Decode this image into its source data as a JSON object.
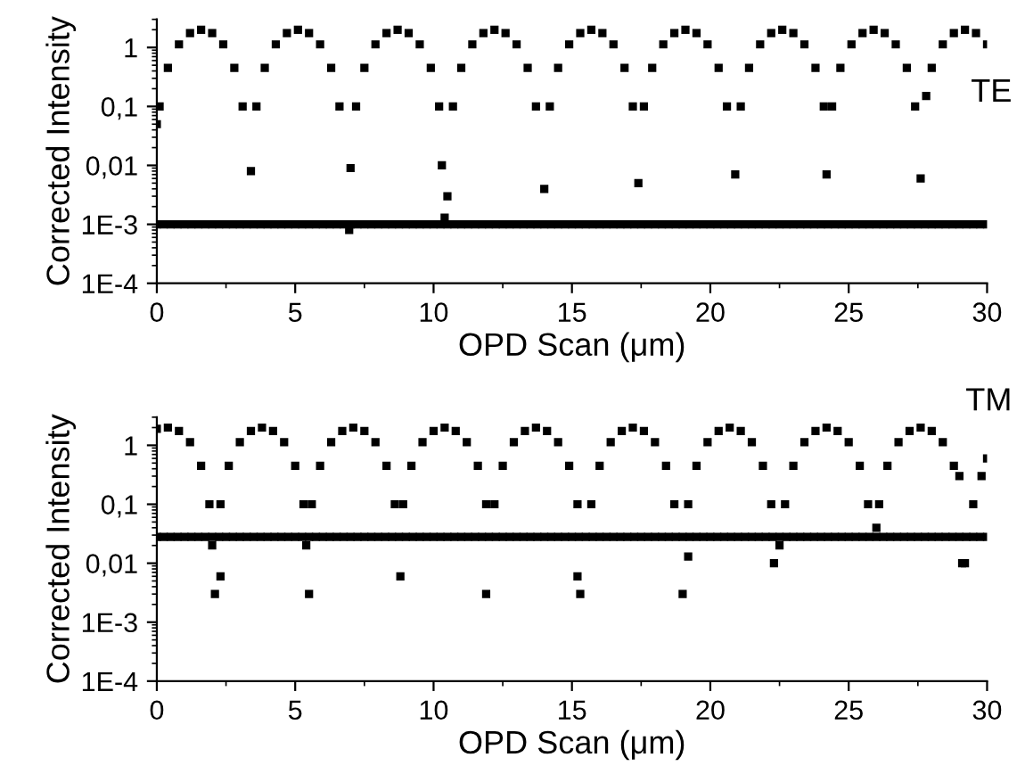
{
  "chart_data": [
    {
      "type": "scatter",
      "xlabel": "OPD Scan (μm)",
      "ylabel": "Corrected Intensity",
      "annotations": [
        "TE"
      ],
      "log": "y",
      "marker": "square",
      "grid": false,
      "legend": false,
      "xlim": [
        0,
        30
      ],
      "xticks": [
        0,
        5,
        10,
        15,
        20,
        25,
        30
      ],
      "ylim": [
        0.0001,
        3
      ],
      "yticks": [
        {
          "value": 0.0001,
          "label": "1E-4"
        },
        {
          "value": 0.001,
          "label": "1E-3"
        },
        {
          "value": 0.01,
          "label": "0,01"
        },
        {
          "value": 0.1,
          "label": "0,1"
        },
        {
          "value": 1,
          "label": "1"
        }
      ],
      "series": [
        {
          "color": "#000000",
          "x": [
            0,
            0.1,
            0.4,
            0.8,
            1.2,
            1.6,
            2.0,
            2.4,
            2.8,
            3.1,
            3.4,
            3.6,
            3.9,
            4.3,
            4.7,
            5.1,
            5.5,
            5.9,
            6.3,
            6.6,
            7.0,
            6.95,
            7.2,
            7.5,
            7.9,
            8.3,
            8.7,
            9.1,
            9.5,
            9.9,
            10.2,
            10.3,
            10.4,
            10.5,
            10.7,
            11.0,
            11.4,
            11.8,
            12.2,
            12.6,
            13.0,
            13.4,
            13.7,
            14.0,
            14.2,
            14.5,
            14.9,
            15.3,
            15.7,
            16.1,
            16.5,
            16.9,
            17.2,
            17.4,
            17.6,
            17.9,
            18.3,
            18.7,
            19.1,
            19.5,
            19.9,
            20.3,
            20.6,
            20.9,
            21.1,
            21.4,
            21.8,
            22.2,
            22.6,
            23.0,
            23.4,
            23.8,
            24.1,
            24.2,
            24.4,
            24.7,
            25.1,
            25.5,
            25.9,
            26.3,
            26.7,
            27.1,
            27.4,
            27.6,
            27.8,
            28.0,
            28.4,
            28.8,
            29.2,
            29.6,
            30.0
          ],
          "values": [
            0.05,
            0.1,
            0.45,
            1.13,
            1.75,
            2,
            1.75,
            1.13,
            0.45,
            0.1,
            0.008,
            0.1,
            0.45,
            1.13,
            1.75,
            2,
            1.75,
            1.13,
            0.45,
            0.1,
            0.009,
            0.0008,
            0.1,
            0.45,
            1.13,
            1.75,
            2,
            1.75,
            1.13,
            0.45,
            0.1,
            0.01,
            0.0013,
            0.003,
            0.1,
            0.45,
            1.13,
            1.75,
            2,
            1.75,
            1.13,
            0.45,
            0.1,
            0.004,
            0.1,
            0.45,
            1.13,
            1.75,
            2,
            1.75,
            1.13,
            0.45,
            0.1,
            0.005,
            0.1,
            0.45,
            1.13,
            1.75,
            2,
            1.75,
            1.13,
            0.45,
            0.1,
            0.007,
            0.1,
            0.45,
            1.13,
            1.75,
            2,
            1.75,
            1.13,
            0.45,
            0.1,
            0.007,
            0.1,
            0.45,
            1.13,
            1.75,
            2,
            1.75,
            1.13,
            0.45,
            0.1,
            0.006,
            0.15,
            0.45,
            1.13,
            1.75,
            2,
            1.75,
            1.13
          ]
        },
        {
          "color": "#000000",
          "x": [
            0,
            0.25,
            0.5,
            0.75,
            1,
            1.25,
            1.5,
            1.75,
            2,
            2.25,
            2.5,
            2.75,
            3,
            3.25,
            3.5,
            3.75,
            4,
            4.25,
            4.5,
            4.75,
            5,
            5.25,
            5.5,
            5.75,
            6,
            6.25,
            6.5,
            6.75,
            7,
            7.25,
            7.5,
            7.75,
            8,
            8.25,
            8.5,
            8.75,
            9,
            9.25,
            9.5,
            9.75,
            10,
            10.25,
            10.5,
            10.75,
            11,
            11.25,
            11.5,
            11.75,
            12,
            12.25,
            12.5,
            12.75,
            13,
            13.25,
            13.5,
            13.75,
            14,
            14.25,
            14.5,
            14.75,
            15,
            15.25,
            15.5,
            15.75,
            16,
            16.25,
            16.5,
            16.75,
            17,
            17.25,
            17.5,
            17.75,
            18,
            18.25,
            18.5,
            18.75,
            19,
            19.25,
            19.5,
            19.75,
            20,
            20.25,
            20.5,
            20.75,
            21,
            21.25,
            21.5,
            21.75,
            22,
            22.25,
            22.5,
            22.75,
            23,
            23.25,
            23.5,
            23.75,
            24,
            24.25,
            24.5,
            24.75,
            25,
            25.25,
            25.5,
            25.75,
            26,
            26.25,
            26.5,
            26.75,
            27,
            27.25,
            27.5,
            27.75,
            28,
            28.25,
            28.5,
            28.75,
            29,
            29.25,
            29.5,
            29.75,
            30
          ],
          "values": [
            0.001,
            0.001,
            0.001,
            0.001,
            0.001,
            0.001,
            0.001,
            0.001,
            0.001,
            0.001,
            0.001,
            0.001,
            0.001,
            0.001,
            0.001,
            0.001,
            0.001,
            0.001,
            0.001,
            0.001,
            0.001,
            0.001,
            0.001,
            0.001,
            0.001,
            0.001,
            0.001,
            0.001,
            0.001,
            0.001,
            0.001,
            0.001,
            0.001,
            0.001,
            0.001,
            0.001,
            0.001,
            0.001,
            0.001,
            0.001,
            0.001,
            0.001,
            0.001,
            0.001,
            0.001,
            0.001,
            0.001,
            0.001,
            0.001,
            0.001,
            0.001,
            0.001,
            0.001,
            0.001,
            0.001,
            0.001,
            0.001,
            0.001,
            0.001,
            0.001,
            0.001,
            0.001,
            0.001,
            0.001,
            0.001,
            0.001,
            0.001,
            0.001,
            0.001,
            0.001,
            0.001,
            0.001,
            0.001,
            0.001,
            0.001,
            0.001,
            0.001,
            0.001,
            0.001,
            0.001,
            0.001,
            0.001,
            0.001,
            0.001,
            0.001,
            0.001,
            0.001,
            0.001,
            0.001,
            0.001,
            0.001,
            0.001,
            0.001,
            0.001,
            0.001,
            0.001,
            0.001,
            0.001,
            0.001,
            0.001,
            0.001,
            0.001,
            0.001,
            0.001,
            0.001,
            0.001,
            0.001,
            0.001,
            0.001,
            0.001,
            0.001,
            0.001,
            0.001,
            0.001,
            0.001,
            0.001,
            0.001,
            0.001,
            0.001,
            0.001,
            0.001
          ]
        }
      ]
    },
    {
      "type": "scatter",
      "xlabel": "OPD Scan (μm)",
      "ylabel": "Corrected Intensity",
      "annotations": [
        "TM"
      ],
      "log": "y",
      "marker": "square",
      "grid": false,
      "legend": false,
      "xlim": [
        0,
        30
      ],
      "xticks": [
        0,
        5,
        10,
        15,
        20,
        25,
        30
      ],
      "ylim": [
        0.0001,
        3
      ],
      "yticks": [
        {
          "value": 0.0001,
          "label": "1E-4"
        },
        {
          "value": 0.001,
          "label": "1E-3"
        },
        {
          "value": 0.01,
          "label": "0,01"
        },
        {
          "value": 0.1,
          "label": "0,1"
        },
        {
          "value": 1,
          "label": "1"
        }
      ],
      "series": [
        {
          "color": "#000000",
          "x": [
            0,
            0.4,
            0.8,
            1.2,
            1.6,
            1.9,
            2.0,
            2.1,
            2.3,
            2.3,
            2.6,
            3.0,
            3.4,
            3.8,
            4.2,
            4.6,
            5.0,
            5.3,
            5.4,
            5.5,
            5.6,
            5.9,
            6.3,
            6.7,
            7.1,
            7.5,
            7.9,
            8.3,
            8.6,
            8.8,
            8.9,
            9.2,
            9.6,
            10.0,
            10.4,
            10.8,
            11.2,
            11.6,
            11.9,
            11.9,
            12.2,
            12.5,
            12.9,
            13.3,
            13.7,
            14.1,
            14.5,
            14.9,
            15.2,
            15.2,
            15.3,
            15.7,
            16.0,
            16.4,
            16.8,
            17.2,
            17.6,
            18.0,
            18.4,
            18.7,
            19.0,
            19.2,
            19.2,
            19.5,
            19.9,
            20.3,
            20.7,
            21.1,
            21.5,
            21.9,
            22.2,
            22.3,
            22.5,
            22.7,
            23.0,
            23.4,
            23.8,
            24.2,
            24.6,
            25.0,
            25.4,
            25.7,
            26.0,
            26.1,
            26.4,
            26.8,
            27.2,
            27.6,
            28.0,
            28.4,
            28.8,
            29.0,
            29.1,
            29.2,
            29.5,
            29.8,
            30.0
          ],
          "values": [
            1.9,
            2,
            1.75,
            1.13,
            0.45,
            0.1,
            0.02,
            0.003,
            0.006,
            0.1,
            0.45,
            1.13,
            1.75,
            2,
            1.75,
            1.13,
            0.45,
            0.1,
            0.02,
            0.003,
            0.1,
            0.45,
            1.13,
            1.75,
            2,
            1.75,
            1.13,
            0.45,
            0.1,
            0.006,
            0.1,
            0.45,
            1.13,
            1.75,
            2,
            1.75,
            1.13,
            0.45,
            0.1,
            0.003,
            0.1,
            0.45,
            1.13,
            1.75,
            2,
            1.75,
            1.13,
            0.45,
            0.1,
            0.006,
            0.003,
            0.1,
            0.45,
            1.13,
            1.75,
            2,
            1.75,
            1.13,
            0.45,
            0.1,
            0.003,
            0.013,
            0.1,
            0.45,
            1.13,
            1.75,
            2,
            1.75,
            1.13,
            0.45,
            0.1,
            0.01,
            0.02,
            0.1,
            0.45,
            1.13,
            1.75,
            2,
            1.75,
            1.13,
            0.45,
            0.1,
            0.04,
            0.1,
            0.45,
            1.13,
            1.75,
            2,
            1.75,
            1.13,
            0.45,
            0.3,
            0.01,
            0.01,
            0.1,
            0.3,
            0.6
          ]
        },
        {
          "color": "#000000",
          "x": [
            0,
            0.25,
            0.5,
            0.75,
            1,
            1.25,
            1.5,
            1.75,
            2,
            2.25,
            2.5,
            2.75,
            3,
            3.25,
            3.5,
            3.75,
            4,
            4.25,
            4.5,
            4.75,
            5,
            5.25,
            5.5,
            5.75,
            6,
            6.25,
            6.5,
            6.75,
            7,
            7.25,
            7.5,
            7.75,
            8,
            8.25,
            8.5,
            8.75,
            9,
            9.25,
            9.5,
            9.75,
            10,
            10.25,
            10.5,
            10.75,
            11,
            11.25,
            11.5,
            11.75,
            12,
            12.25,
            12.5,
            12.75,
            13,
            13.25,
            13.5,
            13.75,
            14,
            14.25,
            14.5,
            14.75,
            15,
            15.25,
            15.5,
            15.75,
            16,
            16.25,
            16.5,
            16.75,
            17,
            17.25,
            17.5,
            17.75,
            18,
            18.25,
            18.5,
            18.75,
            19,
            19.25,
            19.5,
            19.75,
            20,
            20.25,
            20.5,
            20.75,
            21,
            21.25,
            21.5,
            21.75,
            22,
            22.25,
            22.5,
            22.75,
            23,
            23.25,
            23.5,
            23.75,
            24,
            24.25,
            24.5,
            24.75,
            25,
            25.25,
            25.5,
            25.75,
            26,
            26.25,
            26.5,
            26.75,
            27,
            27.25,
            27.5,
            27.75,
            28,
            28.25,
            28.5,
            28.75,
            29,
            29.25,
            29.5,
            29.75,
            30
          ],
          "values": [
            0.028,
            0.028,
            0.028,
            0.028,
            0.028,
            0.028,
            0.028,
            0.028,
            0.028,
            0.028,
            0.028,
            0.028,
            0.028,
            0.028,
            0.028,
            0.028,
            0.028,
            0.028,
            0.028,
            0.028,
            0.028,
            0.028,
            0.028,
            0.028,
            0.028,
            0.028,
            0.028,
            0.028,
            0.028,
            0.028,
            0.028,
            0.028,
            0.028,
            0.028,
            0.028,
            0.028,
            0.028,
            0.028,
            0.028,
            0.028,
            0.028,
            0.028,
            0.028,
            0.028,
            0.028,
            0.028,
            0.028,
            0.028,
            0.028,
            0.028,
            0.028,
            0.028,
            0.028,
            0.028,
            0.028,
            0.028,
            0.028,
            0.028,
            0.028,
            0.028,
            0.028,
            0.028,
            0.028,
            0.028,
            0.028,
            0.028,
            0.028,
            0.028,
            0.028,
            0.028,
            0.028,
            0.028,
            0.028,
            0.028,
            0.028,
            0.028,
            0.028,
            0.028,
            0.028,
            0.028,
            0.028,
            0.028,
            0.028,
            0.028,
            0.028,
            0.028,
            0.028,
            0.028,
            0.028,
            0.028,
            0.028,
            0.028,
            0.028,
            0.028,
            0.028,
            0.028,
            0.028,
            0.028,
            0.028,
            0.028,
            0.028,
            0.028,
            0.028,
            0.028,
            0.028,
            0.028,
            0.028,
            0.028,
            0.028,
            0.028,
            0.028,
            0.028,
            0.028,
            0.028,
            0.028,
            0.028,
            0.028,
            0.028,
            0.028,
            0.028,
            0.028
          ]
        }
      ]
    }
  ]
}
